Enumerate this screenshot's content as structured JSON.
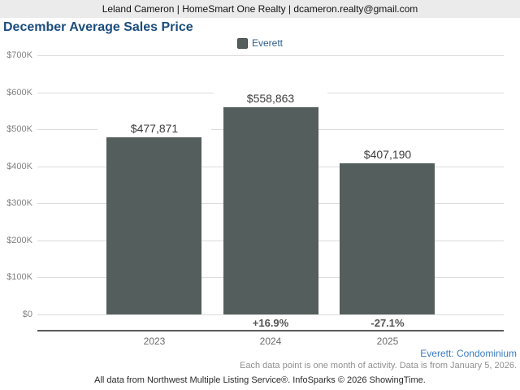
{
  "header": {
    "contact_line": "Leland Cameron | HomeSmart One Realty | dcameron.realty@gmail.com"
  },
  "title": "December Average Sales Price",
  "legend": {
    "label": "Everett",
    "swatch_color": "#545e5c"
  },
  "chart_data": {
    "type": "bar",
    "title": "December Average Sales Price",
    "categories": [
      "2023",
      "2024",
      "2025"
    ],
    "series": [
      {
        "name": "Everett",
        "values": [
          477871,
          558863,
          407190
        ]
      }
    ],
    "value_labels": [
      "$477,871",
      "$558,863",
      "$407,190"
    ],
    "pct_change_labels": [
      "",
      "+16.9%",
      "-27.1%"
    ],
    "xlabel": "",
    "ylabel": "",
    "ylim": [
      0,
      700000
    ],
    "ytick_values": [
      0,
      100000,
      200000,
      300000,
      400000,
      500000,
      600000,
      700000
    ],
    "ytick_labels": [
      "$0",
      "$100K",
      "$200K",
      "$300K",
      "$400K",
      "$500K",
      "$600K",
      "$700K"
    ],
    "bar_color": "#545e5c",
    "grid": true,
    "legend_position": "top-center"
  },
  "footnotes": {
    "series_scope": "Everett: Condominium",
    "data_note": "Each data point is one month of activity. Data is from January 5, 2026.",
    "attribution": "All data from Northwest Multiple Listing Service®. InfoSparks © 2026 ShowingTime."
  },
  "colors": {
    "header_bg": "#ebebeb",
    "title_blue": "#1a4c7c",
    "link_blue": "#3b7cc0",
    "bar": "#545e5c",
    "gridline": "#dcdcdc",
    "axis_line": "#5a5a5a"
  }
}
